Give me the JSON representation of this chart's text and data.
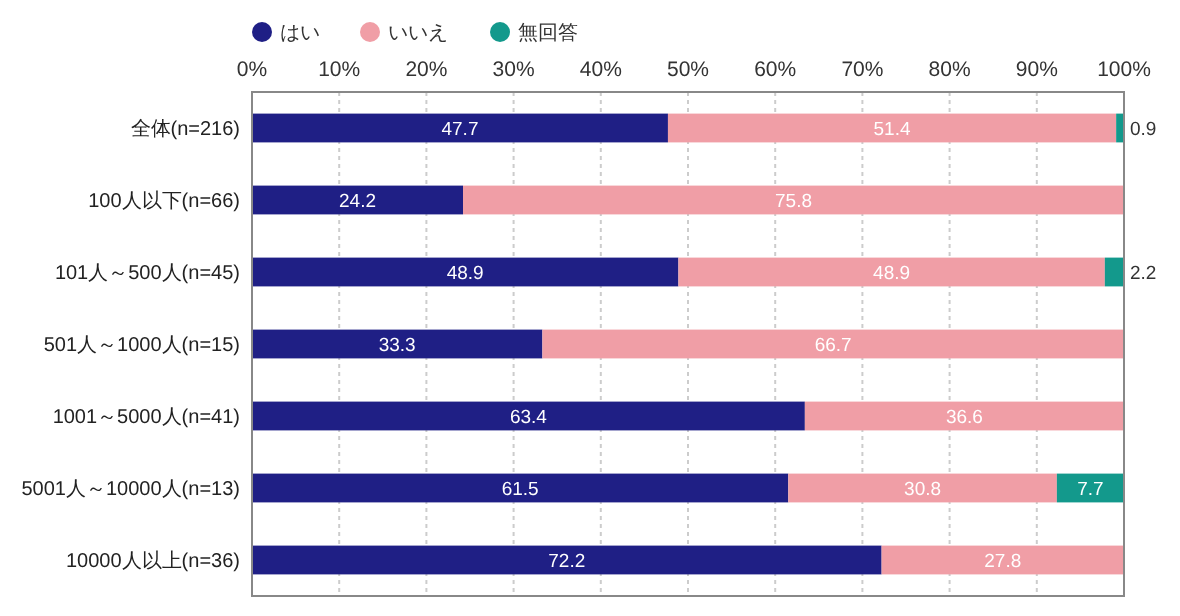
{
  "chart_data": {
    "type": "bar",
    "orientation": "horizontal",
    "stacked": true,
    "categories": [
      "全体(n=216)",
      "100人以下(n=66)",
      "101人～500人(n=45)",
      "501人～1000人(n=15)",
      "1001～5000人(n=41)",
      "5001人～10000人(n=13)",
      "10000人以上(n=36)"
    ],
    "series": [
      {
        "name": "はい",
        "color": "#1f1f85",
        "values": [
          47.7,
          24.2,
          48.9,
          33.3,
          63.4,
          61.5,
          72.2
        ]
      },
      {
        "name": "いいえ",
        "color": "#f09ea6",
        "values": [
          51.4,
          75.8,
          48.9,
          66.7,
          36.6,
          30.8,
          27.8
        ]
      },
      {
        "name": "無回答",
        "color": "#13998c",
        "values": [
          0.9,
          null,
          2.2,
          null,
          null,
          7.7,
          null
        ]
      }
    ],
    "xlim": [
      0,
      100
    ],
    "xticks": [
      {
        "value": 0,
        "label": "0%"
      },
      {
        "value": 10,
        "label": "10%"
      },
      {
        "value": 20,
        "label": "20%"
      },
      {
        "value": 30,
        "label": "30%"
      },
      {
        "value": 40,
        "label": "40%"
      },
      {
        "value": 50,
        "label": "50%"
      },
      {
        "value": 60,
        "label": "60%"
      },
      {
        "value": 70,
        "label": "70%"
      },
      {
        "value": 80,
        "label": "80%"
      },
      {
        "value": 90,
        "label": "90%"
      },
      {
        "value": 100,
        "label": "100%"
      }
    ],
    "grid": "x",
    "legend": "top left",
    "data_labels": true
  }
}
